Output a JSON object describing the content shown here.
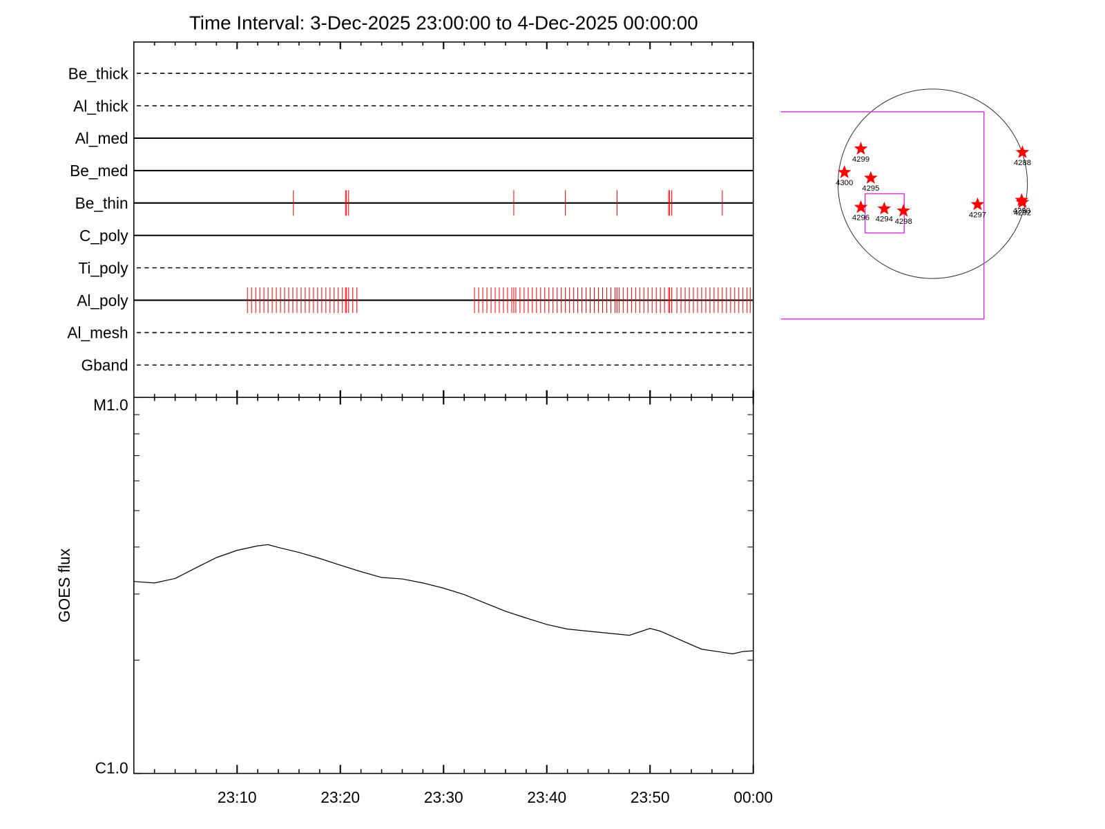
{
  "chart_data": [
    {
      "type": "timeline",
      "title": "Time Interval:  3-Dec-2025 23:00:00 to  4-Dec-2025 00:00:00",
      "categories": [
        "Be_thick",
        "Al_thick",
        "Al_med",
        "Be_med",
        "Be_thin",
        "C_poly",
        "Ti_poly",
        "Al_poly",
        "Al_mesh",
        "Gband"
      ],
      "line_styles": [
        "dashed",
        "dashed",
        "solid",
        "solid",
        "solid",
        "solid",
        "dashed",
        "solid",
        "dashed",
        "dashed"
      ],
      "event_color": "#ff0000",
      "events": [
        [],
        [],
        [],
        [],
        [
          15.45,
          20.5,
          20.6,
          20.8,
          36.8,
          41.8,
          46.8,
          51.8,
          51.9,
          52.1,
          57.0
        ],
        [],
        [],
        [
          11.0,
          11.4,
          11.8,
          12.2,
          12.6,
          13.0,
          13.4,
          13.8,
          14.2,
          14.6,
          15.0,
          15.4,
          15.8,
          16.2,
          16.6,
          17.0,
          17.4,
          17.8,
          18.2,
          18.6,
          19.0,
          19.4,
          19.8,
          20.2,
          20.5,
          20.6,
          20.8,
          21.2,
          21.6,
          33.0,
          33.4,
          33.8,
          34.2,
          34.6,
          35.0,
          35.4,
          35.8,
          36.2,
          36.6,
          36.8,
          37.0,
          37.4,
          37.8,
          38.2,
          38.6,
          39.0,
          39.4,
          39.8,
          40.2,
          40.6,
          41.0,
          41.4,
          41.8,
          42.2,
          42.6,
          43.0,
          43.4,
          43.8,
          44.2,
          44.6,
          45.0,
          45.4,
          45.8,
          46.2,
          46.6,
          46.8,
          47.0,
          47.4,
          47.8,
          48.2,
          48.6,
          49.0,
          49.4,
          49.8,
          50.2,
          50.6,
          51.0,
          51.4,
          51.8,
          51.9,
          52.1,
          52.6,
          53.0,
          53.4,
          53.8,
          54.2,
          54.6,
          55.0,
          55.4,
          55.8,
          56.2,
          56.6,
          57.0,
          57.4,
          57.8,
          58.2,
          58.6,
          59.0,
          59.4,
          59.7
        ],
        [],
        []
      ],
      "xlim": [
        0,
        60
      ],
      "xticks": [
        10,
        20,
        30,
        40,
        50,
        60
      ],
      "xminorticks": [
        2,
        4,
        6,
        8,
        12,
        14,
        16,
        18,
        22,
        24,
        26,
        28,
        32,
        34,
        36,
        38,
        42,
        44,
        46,
        48,
        52,
        54,
        56,
        58
      ]
    },
    {
      "type": "line",
      "ylabel": "GOES flux",
      "log_scale": true,
      "color": "#000000",
      "x": [
        0,
        2,
        4,
        6,
        8,
        10,
        12,
        13,
        14,
        16,
        18,
        20,
        22,
        24,
        26,
        28,
        30,
        32,
        34,
        36,
        38,
        40,
        42,
        44,
        46,
        48,
        50,
        51,
        53,
        55,
        57,
        58,
        59,
        60
      ],
      "values": [
        3.24e-06,
        3.21e-06,
        3.3e-06,
        3.52e-06,
        3.75e-06,
        3.92e-06,
        4.03e-06,
        4.06e-06,
        3.99e-06,
        3.87e-06,
        3.73e-06,
        3.58e-06,
        3.44e-06,
        3.32e-06,
        3.29e-06,
        3.21e-06,
        3.11e-06,
        2.99e-06,
        2.84e-06,
        2.7e-06,
        2.59e-06,
        2.49e-06,
        2.42e-06,
        2.39e-06,
        2.36e-06,
        2.33e-06,
        2.43e-06,
        2.39e-06,
        2.26e-06,
        2.14e-06,
        2.1e-06,
        2.08e-06,
        2.11e-06,
        2.12e-06
      ],
      "xlim": [
        0,
        60
      ],
      "xticks": [
        {
          "value": 10,
          "label": "23:10"
        },
        {
          "value": 20,
          "label": "23:20"
        },
        {
          "value": 30,
          "label": "23:30"
        },
        {
          "value": 40,
          "label": "23:40"
        },
        {
          "value": 50,
          "label": "23:50"
        },
        {
          "value": 60,
          "label": "00:00"
        }
      ],
      "xminorticks": [
        2,
        4,
        6,
        8,
        12,
        14,
        16,
        18,
        22,
        24,
        26,
        28,
        32,
        34,
        36,
        38,
        42,
        44,
        46,
        48,
        52,
        54,
        56,
        58
      ],
      "ylim": [
        1e-06,
        1e-05
      ],
      "yticks": [
        {
          "value": 1e-06,
          "label": "C1.0"
        },
        {
          "value": 1e-05,
          "label": "M1.0"
        }
      ],
      "yminorticks": [
        2e-06,
        3e-06,
        4e-06,
        5e-06,
        6e-06,
        7e-06,
        8e-06,
        9e-06
      ]
    },
    {
      "type": "map",
      "color": "#ff0000",
      "labels": [
        "4299",
        "4300",
        "4295",
        "4296",
        "4294",
        "4298",
        "4297",
        "4288",
        "4290",
        "4292"
      ],
      "x": [
        -740,
        -909,
        -638,
        -740,
        -499,
        -301,
        462,
        924,
        916,
        924
      ],
      "y": [
        359,
        117,
        59,
        -242,
        -257,
        -279,
        -213,
        323,
        -169,
        -191
      ]
    }
  ]
}
